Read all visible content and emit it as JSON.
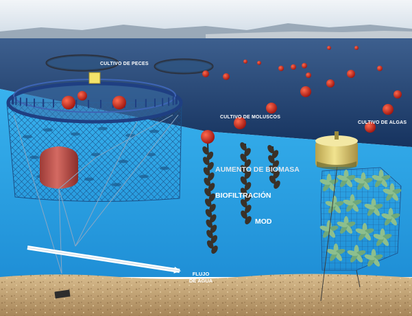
{
  "labels": {
    "fish_farming": "CULTIVO DE PECES",
    "mollusc_farming": "CULTIVO DE MOLUSCOS",
    "algae_farming": "CULTIVO DE ALGAS",
    "biomass_increase": "AUMENTO DE BIOMASA",
    "biofiltration": "BIOFILTRACIÓN",
    "mod": "MOD",
    "water_flow_line1": "FLUJO",
    "water_flow_line2": "DE AGUA"
  },
  "colors": {
    "sky": "#dde6ee",
    "sea_surface": "#1c3d6e",
    "underwater": "#2ea3e6",
    "seabed": "#c9a878",
    "buoy_red": "#c8201a",
    "float_yellow": "#e6d36a",
    "cage_frame": "#2a4f9a",
    "arrow": "#ffffff"
  }
}
